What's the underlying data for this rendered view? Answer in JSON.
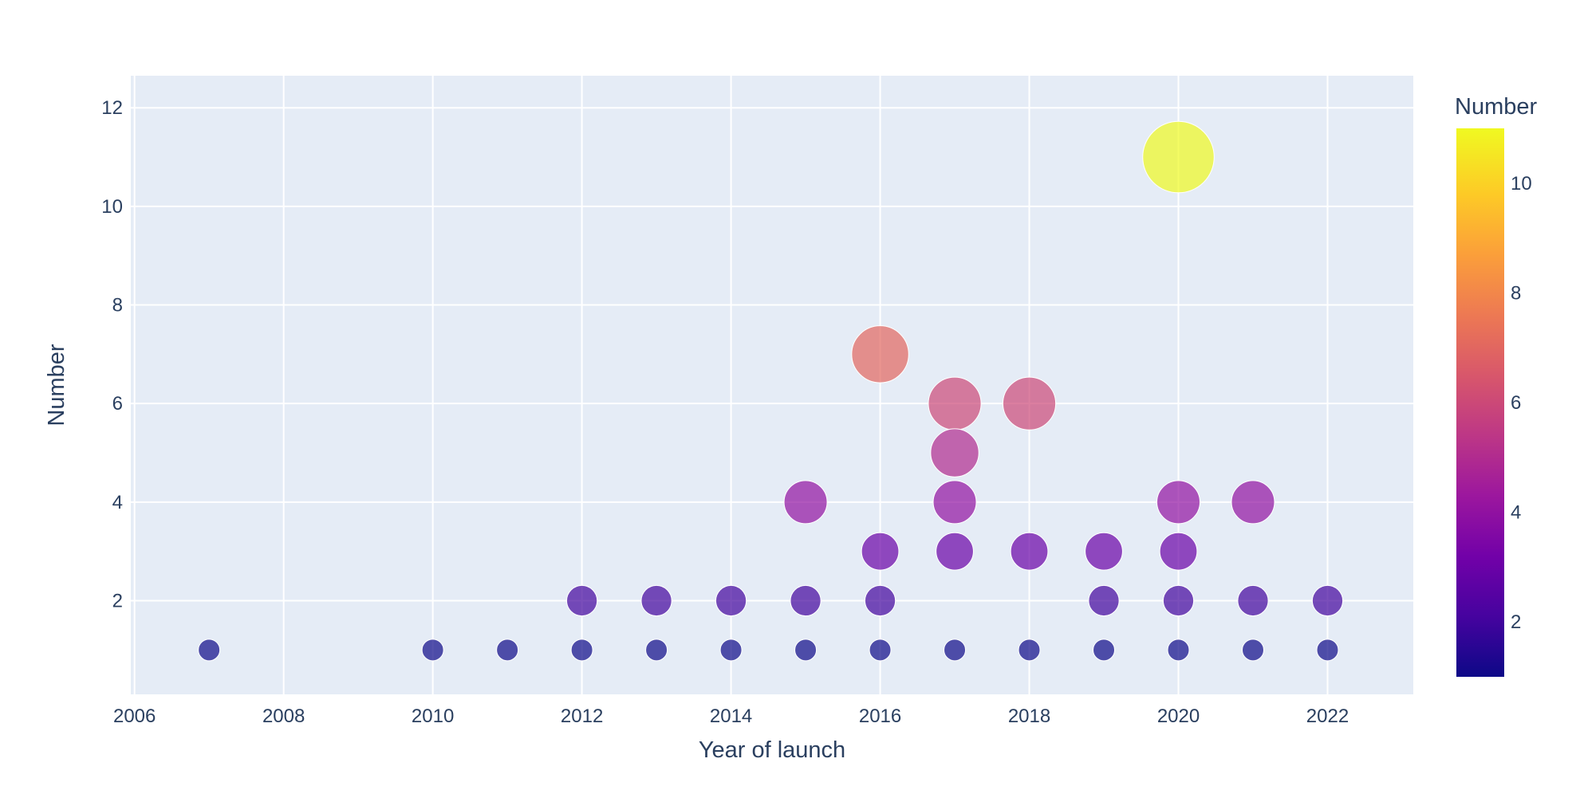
{
  "chart_data": {
    "type": "scatter",
    "title": "",
    "xlabel": "Year of launch",
    "ylabel": "Number",
    "xlim": [
      2005.95,
      2023.15
    ],
    "ylim": [
      0.1,
      12.65
    ],
    "x_ticks": [
      "2006",
      "2008",
      "2010",
      "2012",
      "2014",
      "2016",
      "2018",
      "2020",
      "2022"
    ],
    "y_ticks": [
      "2",
      "4",
      "6",
      "8",
      "10",
      "12"
    ],
    "grid": true,
    "marker_size_encodes": "Number",
    "marker_color_encodes": "Number",
    "colorbar": {
      "title": "Number",
      "range": [
        1,
        11
      ],
      "ticks": [
        "2",
        "4",
        "6",
        "8",
        "10"
      ],
      "placement": "right",
      "colorscale": "plasma"
    },
    "points": [
      {
        "x": 2007,
        "y": 1
      },
      {
        "x": 2010,
        "y": 1
      },
      {
        "x": 2011,
        "y": 1
      },
      {
        "x": 2012,
        "y": 1
      },
      {
        "x": 2012,
        "y": 2
      },
      {
        "x": 2013,
        "y": 1
      },
      {
        "x": 2013,
        "y": 2
      },
      {
        "x": 2014,
        "y": 1
      },
      {
        "x": 2014,
        "y": 2
      },
      {
        "x": 2015,
        "y": 1
      },
      {
        "x": 2015,
        "y": 2
      },
      {
        "x": 2015,
        "y": 4
      },
      {
        "x": 2016,
        "y": 1
      },
      {
        "x": 2016,
        "y": 2
      },
      {
        "x": 2016,
        "y": 3
      },
      {
        "x": 2016,
        "y": 7
      },
      {
        "x": 2017,
        "y": 1
      },
      {
        "x": 2017,
        "y": 3
      },
      {
        "x": 2017,
        "y": 4
      },
      {
        "x": 2017,
        "y": 5
      },
      {
        "x": 2017,
        "y": 6
      },
      {
        "x": 2018,
        "y": 1
      },
      {
        "x": 2018,
        "y": 3
      },
      {
        "x": 2018,
        "y": 6
      },
      {
        "x": 2019,
        "y": 1
      },
      {
        "x": 2019,
        "y": 2
      },
      {
        "x": 2019,
        "y": 3
      },
      {
        "x": 2020,
        "y": 1
      },
      {
        "x": 2020,
        "y": 2
      },
      {
        "x": 2020,
        "y": 3
      },
      {
        "x": 2020,
        "y": 4
      },
      {
        "x": 2020,
        "y": 11
      },
      {
        "x": 2021,
        "y": 1
      },
      {
        "x": 2021,
        "y": 2
      },
      {
        "x": 2021,
        "y": 4
      },
      {
        "x": 2022,
        "y": 1
      },
      {
        "x": 2022,
        "y": 2
      }
    ]
  },
  "colors": {
    "plot_background": "#e5ecf6",
    "gridline": "#ffffff",
    "text": "#2a3f5f"
  }
}
